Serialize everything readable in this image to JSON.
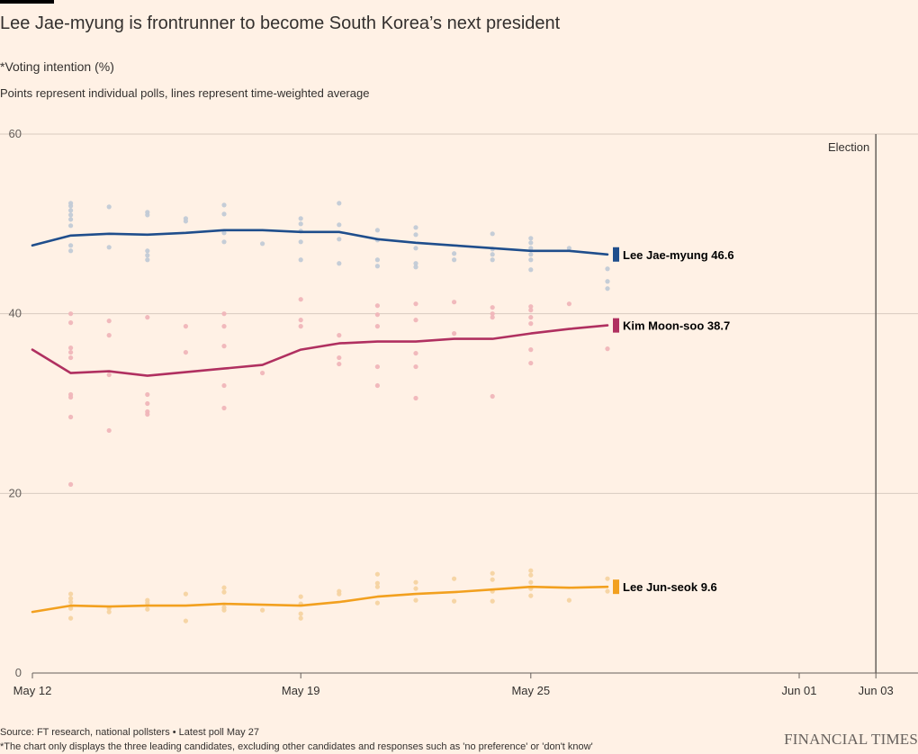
{
  "header": {
    "title": "Lee Jae-myung is frontrunner to become South Korea’s next president",
    "subtitle": "*Voting intention (%)",
    "note": "Points represent individual polls, lines represent time-weighted average"
  },
  "footer": {
    "source": "Source: FT research, national pollsters • Latest poll May 27",
    "footnote": "*The chart only displays the three leading candidates, excluding other candidates and responses such as 'no preference' or 'don't know'",
    "brand": "FINANCIAL TIMES"
  },
  "chart_data": {
    "type": "line",
    "ylim": [
      0,
      60
    ],
    "yticks": [
      0,
      20,
      40,
      60
    ],
    "xlim": [
      "2025-05-12",
      "2025-06-03"
    ],
    "xticks": [
      {
        "date": "2025-05-12",
        "label": "May 12"
      },
      {
        "date": "2025-05-19",
        "label": "May 19"
      },
      {
        "date": "2025-05-25",
        "label": "May 25"
      },
      {
        "date": "2025-06-01",
        "label": "Jun 01"
      },
      {
        "date": "2025-06-03",
        "label": "Jun 03"
      }
    ],
    "annotations": [
      {
        "type": "vline",
        "date": "2025-06-03",
        "label": "Election"
      }
    ],
    "grid": true,
    "series": [
      {
        "name": "Lee Jae-myung",
        "color": "#1f4e8c",
        "point_color": "#c2cad6",
        "end_label": "Lee Jae-myung 46.6",
        "line": [
          [
            "2025-05-12",
            47.6
          ],
          [
            "2025-05-13",
            48.7
          ],
          [
            "2025-05-14",
            48.9
          ],
          [
            "2025-05-15",
            48.8
          ],
          [
            "2025-05-16",
            49.0
          ],
          [
            "2025-05-17",
            49.3
          ],
          [
            "2025-05-18",
            49.3
          ],
          [
            "2025-05-19",
            49.1
          ],
          [
            "2025-05-20",
            49.1
          ],
          [
            "2025-05-21",
            48.3
          ],
          [
            "2025-05-22",
            47.9
          ],
          [
            "2025-05-23",
            47.6
          ],
          [
            "2025-05-24",
            47.3
          ],
          [
            "2025-05-25",
            47.0
          ],
          [
            "2025-05-26",
            47.0
          ],
          [
            "2025-05-27",
            46.6
          ]
        ],
        "polls": [
          [
            "2025-05-13",
            52.3
          ],
          [
            "2025-05-13",
            52.0
          ],
          [
            "2025-05-13",
            51.5
          ],
          [
            "2025-05-13",
            51.0
          ],
          [
            "2025-05-13",
            50.5
          ],
          [
            "2025-05-13",
            49.8
          ],
          [
            "2025-05-13",
            47.6
          ],
          [
            "2025-05-13",
            47.0
          ],
          [
            "2025-05-14",
            51.9
          ],
          [
            "2025-05-14",
            47.4
          ],
          [
            "2025-05-15",
            51.3
          ],
          [
            "2025-05-15",
            51.0
          ],
          [
            "2025-05-15",
            47.0
          ],
          [
            "2025-05-15",
            46.5
          ],
          [
            "2025-05-15",
            46.0
          ],
          [
            "2025-05-16",
            50.6
          ],
          [
            "2025-05-16",
            50.3
          ],
          [
            "2025-05-17",
            52.1
          ],
          [
            "2025-05-17",
            51.1
          ],
          [
            "2025-05-17",
            49.0
          ],
          [
            "2025-05-17",
            48.0
          ],
          [
            "2025-05-18",
            47.8
          ],
          [
            "2025-05-19",
            50.6
          ],
          [
            "2025-05-19",
            50.0
          ],
          [
            "2025-05-19",
            49.2
          ],
          [
            "2025-05-19",
            48.0
          ],
          [
            "2025-05-19",
            46.0
          ],
          [
            "2025-05-20",
            52.3
          ],
          [
            "2025-05-20",
            49.9
          ],
          [
            "2025-05-20",
            48.3
          ],
          [
            "2025-05-20",
            45.6
          ],
          [
            "2025-05-21",
            49.3
          ],
          [
            "2025-05-21",
            48.2
          ],
          [
            "2025-05-21",
            46.0
          ],
          [
            "2025-05-21",
            45.3
          ],
          [
            "2025-05-22",
            49.6
          ],
          [
            "2025-05-22",
            48.8
          ],
          [
            "2025-05-22",
            47.3
          ],
          [
            "2025-05-22",
            45.6
          ],
          [
            "2025-05-22",
            45.2
          ],
          [
            "2025-05-23",
            46.7
          ],
          [
            "2025-05-23",
            46.0
          ],
          [
            "2025-05-24",
            48.9
          ],
          [
            "2025-05-24",
            47.2
          ],
          [
            "2025-05-24",
            46.6
          ],
          [
            "2025-05-24",
            46.0
          ],
          [
            "2025-05-25",
            48.4
          ],
          [
            "2025-05-25",
            47.9
          ],
          [
            "2025-05-25",
            47.3
          ],
          [
            "2025-05-25",
            46.6
          ],
          [
            "2025-05-25",
            46.0
          ],
          [
            "2025-05-25",
            44.9
          ],
          [
            "2025-05-26",
            47.3
          ],
          [
            "2025-05-27",
            45.0
          ],
          [
            "2025-05-27",
            43.6
          ],
          [
            "2025-05-27",
            42.8
          ]
        ]
      },
      {
        "name": "Kim Moon-soo",
        "color": "#b03060",
        "point_color": "#f0b5b9",
        "end_label": "Kim Moon-soo 38.7",
        "line": [
          [
            "2025-05-12",
            36.0
          ],
          [
            "2025-05-13",
            33.4
          ],
          [
            "2025-05-14",
            33.6
          ],
          [
            "2025-05-15",
            33.1
          ],
          [
            "2025-05-16",
            33.5
          ],
          [
            "2025-05-17",
            33.9
          ],
          [
            "2025-05-18",
            34.3
          ],
          [
            "2025-05-19",
            36.0
          ],
          [
            "2025-05-20",
            36.7
          ],
          [
            "2025-05-21",
            36.9
          ],
          [
            "2025-05-22",
            36.9
          ],
          [
            "2025-05-23",
            37.2
          ],
          [
            "2025-05-24",
            37.2
          ],
          [
            "2025-05-25",
            37.8
          ],
          [
            "2025-05-26",
            38.3
          ],
          [
            "2025-05-27",
            38.7
          ]
        ],
        "polls": [
          [
            "2025-05-13",
            40.0
          ],
          [
            "2025-05-13",
            39.0
          ],
          [
            "2025-05-13",
            36.2
          ],
          [
            "2025-05-13",
            35.7
          ],
          [
            "2025-05-13",
            35.1
          ],
          [
            "2025-05-13",
            31.0
          ],
          [
            "2025-05-13",
            30.7
          ],
          [
            "2025-05-13",
            28.5
          ],
          [
            "2025-05-13",
            21.0
          ],
          [
            "2025-05-14",
            39.2
          ],
          [
            "2025-05-14",
            37.6
          ],
          [
            "2025-05-14",
            33.2
          ],
          [
            "2025-05-14",
            27.0
          ],
          [
            "2025-05-15",
            39.6
          ],
          [
            "2025-05-15",
            31.0
          ],
          [
            "2025-05-15",
            30.0
          ],
          [
            "2025-05-15",
            29.1
          ],
          [
            "2025-05-15",
            28.8
          ],
          [
            "2025-05-16",
            38.6
          ],
          [
            "2025-05-16",
            35.7
          ],
          [
            "2025-05-17",
            40.0
          ],
          [
            "2025-05-17",
            38.6
          ],
          [
            "2025-05-17",
            36.4
          ],
          [
            "2025-05-17",
            32.0
          ],
          [
            "2025-05-17",
            29.5
          ],
          [
            "2025-05-18",
            33.4
          ],
          [
            "2025-05-19",
            41.6
          ],
          [
            "2025-05-19",
            39.3
          ],
          [
            "2025-05-19",
            38.6
          ],
          [
            "2025-05-20",
            37.6
          ],
          [
            "2025-05-20",
            35.1
          ],
          [
            "2025-05-20",
            34.4
          ],
          [
            "2025-05-21",
            40.9
          ],
          [
            "2025-05-21",
            39.9
          ],
          [
            "2025-05-21",
            38.6
          ],
          [
            "2025-05-21",
            34.1
          ],
          [
            "2025-05-21",
            32.0
          ],
          [
            "2025-05-22",
            41.1
          ],
          [
            "2025-05-22",
            39.3
          ],
          [
            "2025-05-22",
            35.6
          ],
          [
            "2025-05-22",
            34.1
          ],
          [
            "2025-05-22",
            30.6
          ],
          [
            "2025-05-23",
            41.3
          ],
          [
            "2025-05-23",
            37.8
          ],
          [
            "2025-05-24",
            40.7
          ],
          [
            "2025-05-24",
            40.0
          ],
          [
            "2025-05-24",
            39.6
          ],
          [
            "2025-05-24",
            30.8
          ],
          [
            "2025-05-25",
            40.8
          ],
          [
            "2025-05-25",
            40.4
          ],
          [
            "2025-05-25",
            39.6
          ],
          [
            "2025-05-25",
            38.9
          ],
          [
            "2025-05-25",
            36.0
          ],
          [
            "2025-05-25",
            34.5
          ],
          [
            "2025-05-26",
            41.1
          ],
          [
            "2025-05-27",
            36.1
          ]
        ]
      },
      {
        "name": "Lee Jun-seok",
        "color": "#f2a01f",
        "point_color": "#f6d3a1",
        "end_label": "Lee Jun-seok 9.6",
        "line": [
          [
            "2025-05-12",
            6.8
          ],
          [
            "2025-05-13",
            7.5
          ],
          [
            "2025-05-14",
            7.4
          ],
          [
            "2025-05-15",
            7.5
          ],
          [
            "2025-05-16",
            7.5
          ],
          [
            "2025-05-17",
            7.7
          ],
          [
            "2025-05-18",
            7.6
          ],
          [
            "2025-05-19",
            7.5
          ],
          [
            "2025-05-20",
            7.9
          ],
          [
            "2025-05-21",
            8.5
          ],
          [
            "2025-05-22",
            8.8
          ],
          [
            "2025-05-23",
            9.0
          ],
          [
            "2025-05-24",
            9.3
          ],
          [
            "2025-05-25",
            9.6
          ],
          [
            "2025-05-26",
            9.5
          ],
          [
            "2025-05-27",
            9.6
          ]
        ],
        "polls": [
          [
            "2025-05-13",
            8.8
          ],
          [
            "2025-05-13",
            8.3
          ],
          [
            "2025-05-13",
            7.9
          ],
          [
            "2025-05-13",
            7.2
          ],
          [
            "2025-05-13",
            6.1
          ],
          [
            "2025-05-14",
            7.2
          ],
          [
            "2025-05-14",
            6.8
          ],
          [
            "2025-05-15",
            8.1
          ],
          [
            "2025-05-15",
            7.8
          ],
          [
            "2025-05-15",
            7.1
          ],
          [
            "2025-05-16",
            8.8
          ],
          [
            "2025-05-16",
            5.8
          ],
          [
            "2025-05-17",
            9.5
          ],
          [
            "2025-05-17",
            9.0
          ],
          [
            "2025-05-17",
            7.3
          ],
          [
            "2025-05-17",
            7.0
          ],
          [
            "2025-05-18",
            7.0
          ],
          [
            "2025-05-19",
            8.5
          ],
          [
            "2025-05-19",
            7.7
          ],
          [
            "2025-05-19",
            6.6
          ],
          [
            "2025-05-19",
            6.1
          ],
          [
            "2025-05-20",
            9.1
          ],
          [
            "2025-05-20",
            8.8
          ],
          [
            "2025-05-21",
            11.0
          ],
          [
            "2025-05-21",
            10.0
          ],
          [
            "2025-05-21",
            9.6
          ],
          [
            "2025-05-21",
            7.8
          ],
          [
            "2025-05-22",
            10.1
          ],
          [
            "2025-05-22",
            9.4
          ],
          [
            "2025-05-22",
            8.1
          ],
          [
            "2025-05-23",
            10.5
          ],
          [
            "2025-05-23",
            8.0
          ],
          [
            "2025-05-24",
            11.1
          ],
          [
            "2025-05-24",
            10.4
          ],
          [
            "2025-05-24",
            9.1
          ],
          [
            "2025-05-24",
            8.0
          ],
          [
            "2025-05-25",
            11.4
          ],
          [
            "2025-05-25",
            10.9
          ],
          [
            "2025-05-25",
            10.1
          ],
          [
            "2025-05-25",
            9.4
          ],
          [
            "2025-05-25",
            8.6
          ],
          [
            "2025-05-26",
            8.1
          ],
          [
            "2025-05-27",
            10.5
          ],
          [
            "2025-05-27",
            9.1
          ]
        ]
      }
    ]
  }
}
